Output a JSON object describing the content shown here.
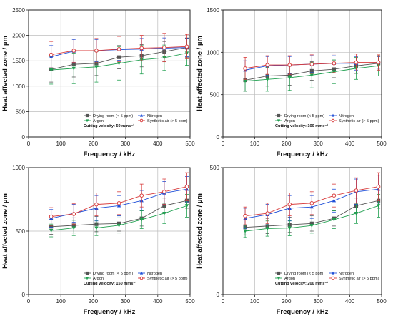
{
  "chart_data": [
    {
      "type": "line",
      "xlabel": "Frequency / kHz",
      "ylabel": "Heat affected zone / µm",
      "xlim": [
        0,
        500
      ],
      "ylim": [
        0,
        2500
      ],
      "xticks": [
        0,
        100,
        200,
        300,
        400,
        500
      ],
      "yticks": [
        0,
        500,
        1000,
        1500,
        2000,
        2500
      ],
      "legend_title": "Cutting velocity: 50 mms⁻¹",
      "legend_position": "bottom-right",
      "x": [
        70,
        140,
        210,
        280,
        350,
        420,
        490
      ],
      "series": [
        {
          "name": "Drying room (< 5 ppm)",
          "values": [
            1330,
            1430,
            1450,
            1570,
            1600,
            1680,
            1760
          ],
          "errors": [
            250,
            250,
            240,
            230,
            220,
            200,
            190
          ]
        },
        {
          "name": "Nitrogen",
          "values": [
            1580,
            1690,
            1700,
            1720,
            1730,
            1750,
            1760
          ],
          "errors": [
            220,
            230,
            220,
            210,
            210,
            200,
            180
          ]
        },
        {
          "name": "Argon",
          "values": [
            1320,
            1350,
            1380,
            1450,
            1520,
            1560,
            1650
          ],
          "errors": [
            280,
            300,
            300,
            330,
            280,
            250,
            240
          ]
        },
        {
          "name": "Synthetic air (> 5 ppm)",
          "values": [
            1620,
            1700,
            1700,
            1730,
            1750,
            1760,
            1780
          ],
          "errors": [
            260,
            230,
            240,
            250,
            250,
            280,
            240
          ]
        }
      ]
    },
    {
      "type": "line",
      "xlabel": "Frequency / kHz",
      "ylabel": "Heat affected zone / µm",
      "xlim": [
        0,
        500
      ],
      "ylim": [
        0,
        1500
      ],
      "xticks": [
        0,
        100,
        200,
        300,
        400,
        500
      ],
      "yticks": [
        0,
        500,
        1000,
        1500
      ],
      "legend_title": "Cutting velocity: 100 mms⁻¹",
      "legend_position": "bottom-right",
      "x": [
        70,
        140,
        210,
        280,
        350,
        420,
        490
      ],
      "series": [
        {
          "name": "Drying room (< 5 ppm)",
          "values": [
            670,
            720,
            730,
            780,
            800,
            840,
            870
          ],
          "errors": [
            130,
            120,
            120,
            110,
            100,
            90,
            80
          ]
        },
        {
          "name": "Nitrogen",
          "values": [
            790,
            840,
            850,
            860,
            870,
            870,
            880
          ],
          "errors": [
            110,
            110,
            100,
            100,
            90,
            80,
            70
          ]
        },
        {
          "name": "Argon",
          "values": [
            660,
            680,
            700,
            730,
            770,
            810,
            840
          ],
          "errors": [
            120,
            140,
            150,
            150,
            140,
            130,
            120
          ]
        },
        {
          "name": "Synthetic air (> 5 ppm)",
          "values": [
            810,
            850,
            850,
            860,
            870,
            880,
            880
          ],
          "errors": [
            130,
            110,
            110,
            110,
            110,
            100,
            90
          ]
        }
      ]
    },
    {
      "type": "line",
      "xlabel": "Frequency / kHz",
      "ylabel": "Heat affected zone / µm",
      "xlim": [
        0,
        500
      ],
      "ylim": [
        0,
        1000
      ],
      "xticks": [
        0,
        100,
        200,
        300,
        400,
        500
      ],
      "yticks": [
        0,
        500,
        1000
      ],
      "legend_title": "Cutting velocity: 150 mms⁻¹",
      "legend_position": "bottom-right",
      "x": [
        70,
        140,
        210,
        280,
        350,
        420,
        490
      ],
      "series": [
        {
          "name": "Drying room (< 5 ppm)",
          "values": [
            535,
            545,
            555,
            560,
            600,
            700,
            740
          ],
          "errors": [
            60,
            60,
            60,
            60,
            60,
            60,
            60
          ]
        },
        {
          "name": "Nitrogen",
          "values": [
            600,
            640,
            680,
            700,
            740,
            800,
            830
          ],
          "errors": [
            70,
            70,
            100,
            80,
            80,
            90,
            100
          ]
        },
        {
          "name": "Argon",
          "values": [
            505,
            525,
            525,
            545,
            590,
            640,
            700
          ],
          "errors": [
            50,
            60,
            60,
            60,
            70,
            80,
            90
          ]
        },
        {
          "name": "Synthetic air (> 5 ppm)",
          "values": [
            615,
            635,
            710,
            720,
            780,
            810,
            850
          ],
          "errors": [
            70,
            80,
            90,
            90,
            90,
            100,
            110
          ]
        }
      ]
    },
    {
      "type": "line",
      "xlabel": "Frequency / kHz",
      "ylabel": "Heat affected zone / µm",
      "xlim": [
        0,
        500
      ],
      "ylim": [
        0,
        500
      ],
      "xticks": [
        0,
        100,
        200,
        300,
        400,
        500
      ],
      "yticks": [
        0,
        500
      ],
      "legend_title": "Cutting velocity: 200 mms⁻¹",
      "legend_position": "bottom-right",
      "x": [
        70,
        140,
        210,
        280,
        350,
        420,
        490
      ],
      "series": [
        {
          "name": "Drying room (< 5 ppm)",
          "values": [
            265,
            270,
            275,
            280,
            300,
            350,
            370
          ],
          "errors": [
            30,
            30,
            30,
            30,
            30,
            30,
            30
          ]
        },
        {
          "name": "Nitrogen",
          "values": [
            300,
            315,
            340,
            345,
            370,
            405,
            415
          ],
          "errors": [
            40,
            40,
            50,
            45,
            45,
            50,
            55
          ]
        },
        {
          "name": "Argon",
          "values": [
            250,
            260,
            262,
            272,
            295,
            320,
            350
          ],
          "errors": [
            25,
            30,
            30,
            30,
            35,
            40,
            45
          ]
        },
        {
          "name": "Synthetic air (> 5 ppm)",
          "values": [
            310,
            320,
            355,
            360,
            390,
            410,
            425
          ],
          "errors": [
            35,
            40,
            45,
            45,
            45,
            50,
            55
          ]
        }
      ]
    }
  ],
  "series_style": [
    {
      "color": "#555555",
      "marker": "square"
    },
    {
      "color": "#1f4fd8",
      "marker": "triangle-up"
    },
    {
      "color": "#20a050",
      "marker": "triangle-down"
    },
    {
      "color": "#d83b3b",
      "marker": "circle"
    }
  ],
  "grid": true
}
